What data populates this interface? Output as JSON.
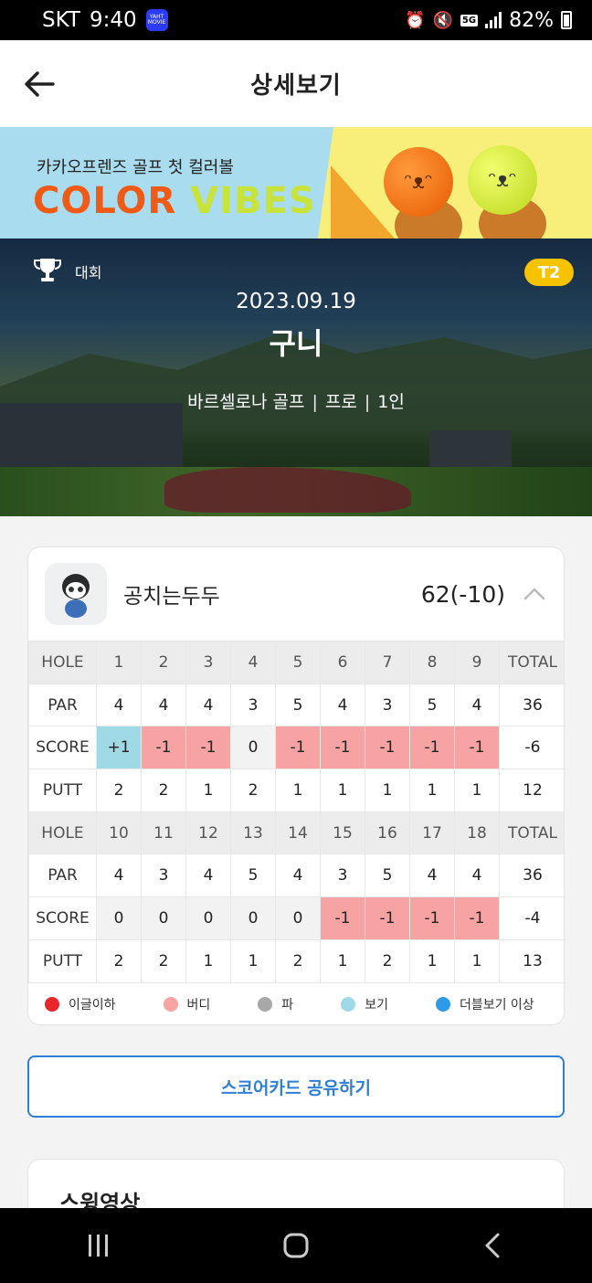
{
  "status": {
    "carrier": "SKT",
    "time": "9:40",
    "app_badge": "YAHT MOVIE",
    "network": "5G",
    "battery": "82%"
  },
  "appbar": {
    "title": "상세보기"
  },
  "banner": {
    "subtitle": "카카오프렌즈 골프 첫 컬러볼",
    "title_part1": "COLOR",
    "title_part2": " VIBES"
  },
  "round": {
    "type": "대회",
    "tee": "T2",
    "date": "2023.09.19",
    "course": "구니",
    "venue": "바르셀로나 골프",
    "level": "프로",
    "players": "1인"
  },
  "player": {
    "name": "공치는두두",
    "total": "62(-10)"
  },
  "front": {
    "hole_label": "HOLE",
    "par_label": "PAR",
    "score_label": "SCORE",
    "putt_label": "PUTT",
    "holes": [
      "1",
      "2",
      "3",
      "4",
      "5",
      "6",
      "7",
      "8",
      "9",
      "TOTAL"
    ],
    "par": [
      "4",
      "4",
      "4",
      "3",
      "5",
      "4",
      "3",
      "5",
      "4",
      "36"
    ],
    "score": [
      "+1",
      "-1",
      "-1",
      "0",
      "-1",
      "-1",
      "-1",
      "-1",
      "-1",
      "-6"
    ],
    "putt": [
      "2",
      "2",
      "1",
      "2",
      "1",
      "1",
      "1",
      "1",
      "1",
      "12"
    ]
  },
  "back": {
    "hole_label": "HOLE",
    "par_label": "PAR",
    "score_label": "SCORE",
    "putt_label": "PUTT",
    "holes": [
      "10",
      "11",
      "12",
      "13",
      "14",
      "15",
      "16",
      "17",
      "18",
      "TOTAL"
    ],
    "par": [
      "4",
      "3",
      "4",
      "5",
      "4",
      "3",
      "5",
      "4",
      "4",
      "36"
    ],
    "score": [
      "0",
      "0",
      "0",
      "0",
      "0",
      "-1",
      "-1",
      "-1",
      "-1",
      "-4"
    ],
    "putt": [
      "2",
      "2",
      "1",
      "1",
      "2",
      "1",
      "2",
      "1",
      "1",
      "13"
    ]
  },
  "legend": [
    {
      "label": "이글이하",
      "color": "#e8262b"
    },
    {
      "label": "버디",
      "color": "#f7a3a3"
    },
    {
      "label": "파",
      "color": "#a8a8a8"
    },
    {
      "label": "보기",
      "color": "#9fd9e6"
    },
    {
      "label": "더블보기 이상",
      "color": "#2e9be8"
    }
  ],
  "share_button": "스코어카드 공유하기",
  "swing_section": {
    "title": "스윙영상"
  }
}
